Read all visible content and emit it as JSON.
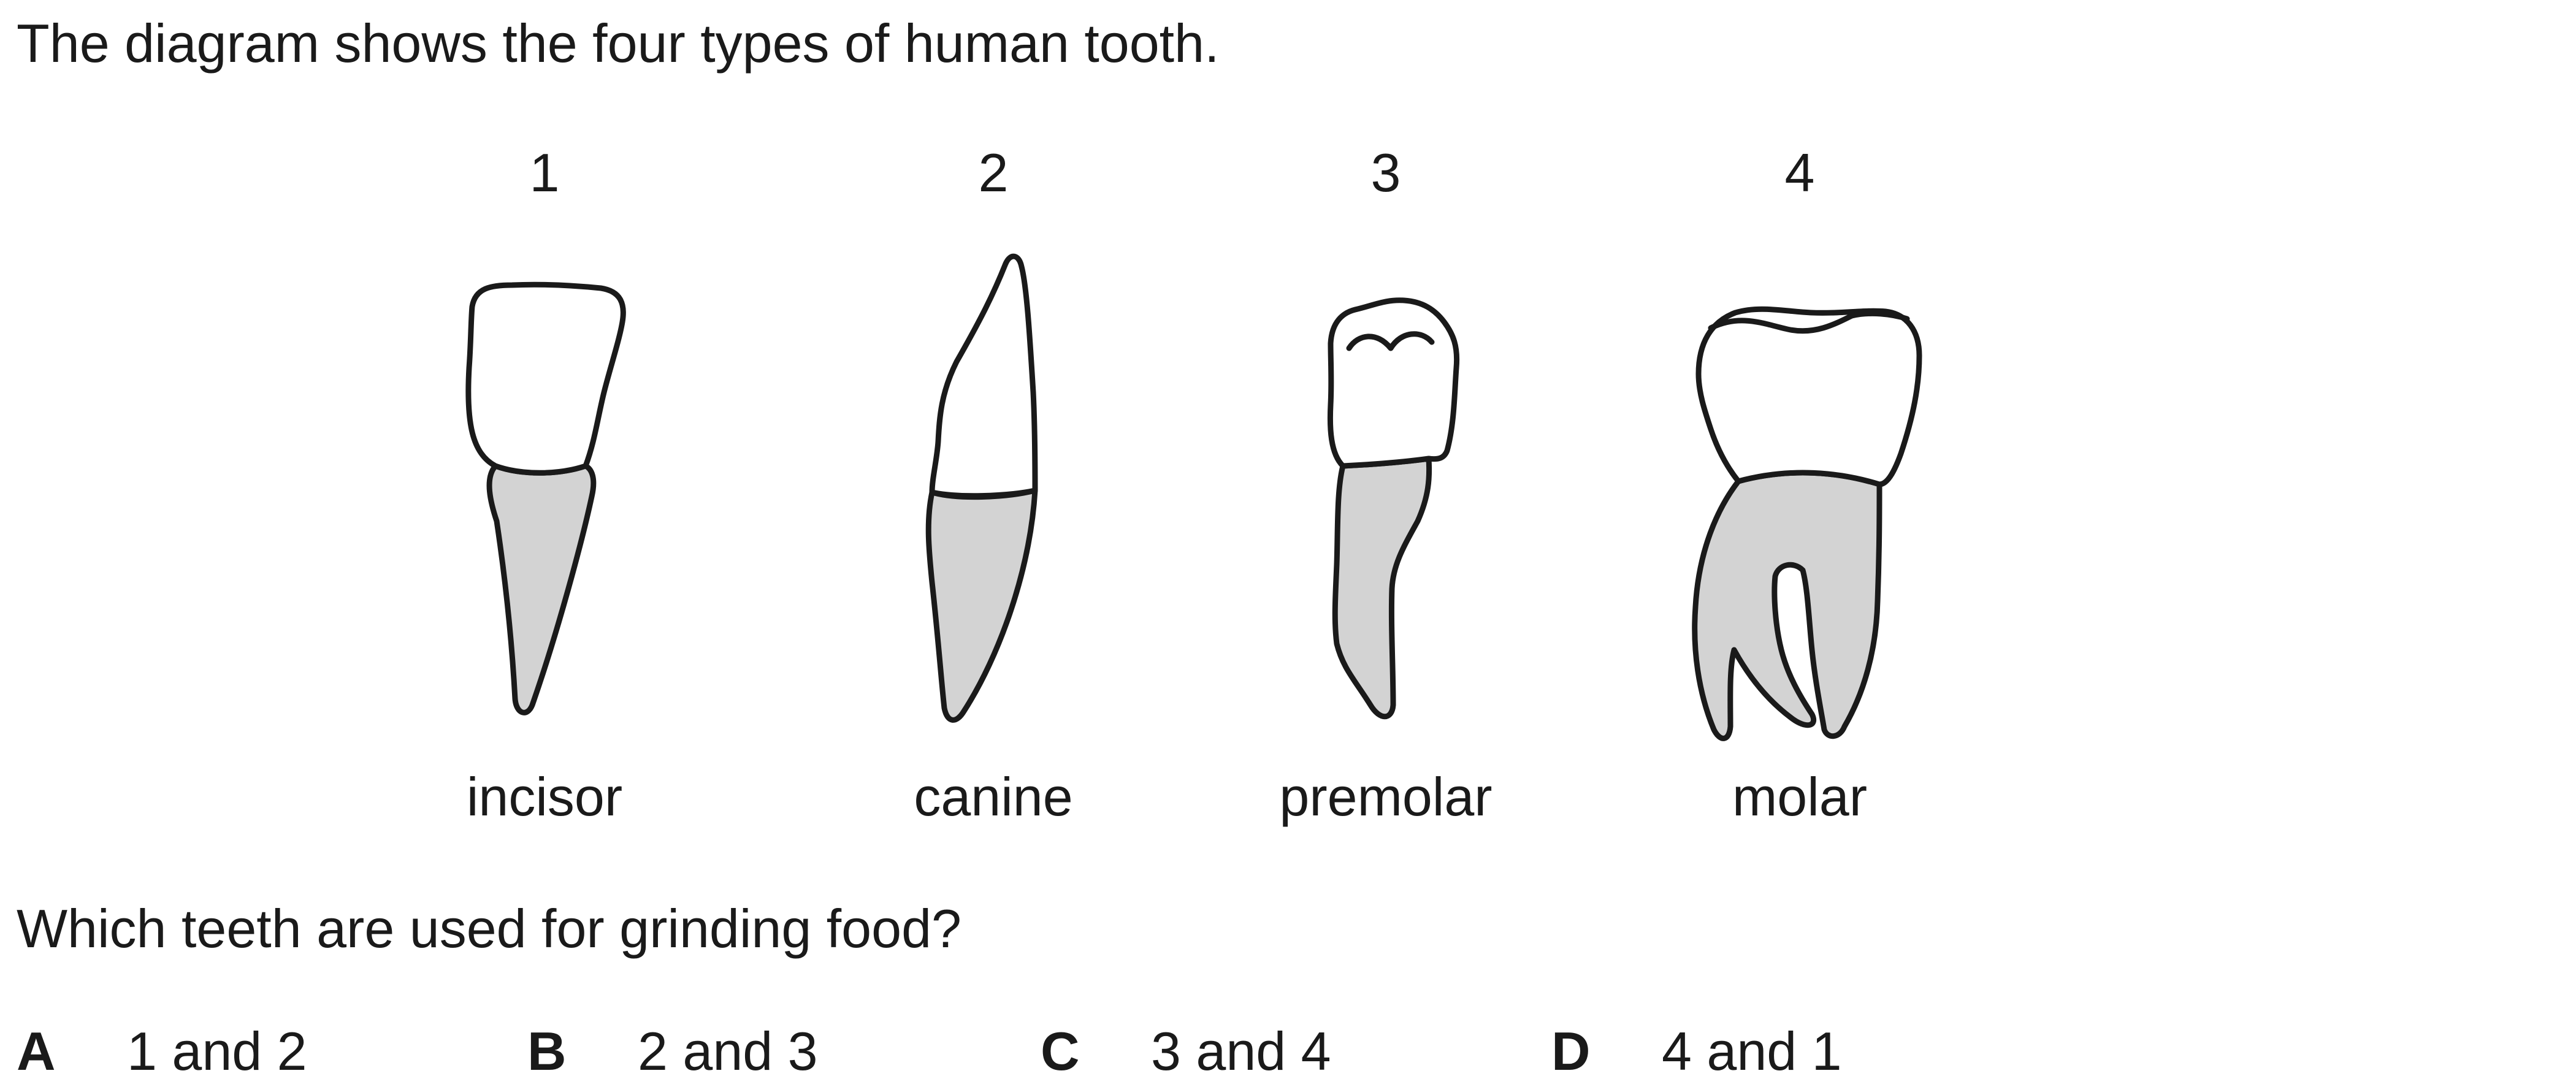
{
  "intro_text": "The diagram shows the four types of human tooth.",
  "teeth": [
    {
      "number": "1",
      "name": "incisor"
    },
    {
      "number": "2",
      "name": "canine"
    },
    {
      "number": "3",
      "name": "premolar"
    },
    {
      "number": "4",
      "name": "molar"
    }
  ],
  "question_text": "Which teeth are used for grinding food?",
  "options": [
    {
      "letter": "A",
      "text": "1 and 2"
    },
    {
      "letter": "B",
      "text": "2 and 3"
    },
    {
      "letter": "C",
      "text": "3 and 4"
    },
    {
      "letter": "D",
      "text": "4 and 1"
    }
  ],
  "colors": {
    "root_fill": "#d3d3d3",
    "outline": "#1a1a1a"
  }
}
